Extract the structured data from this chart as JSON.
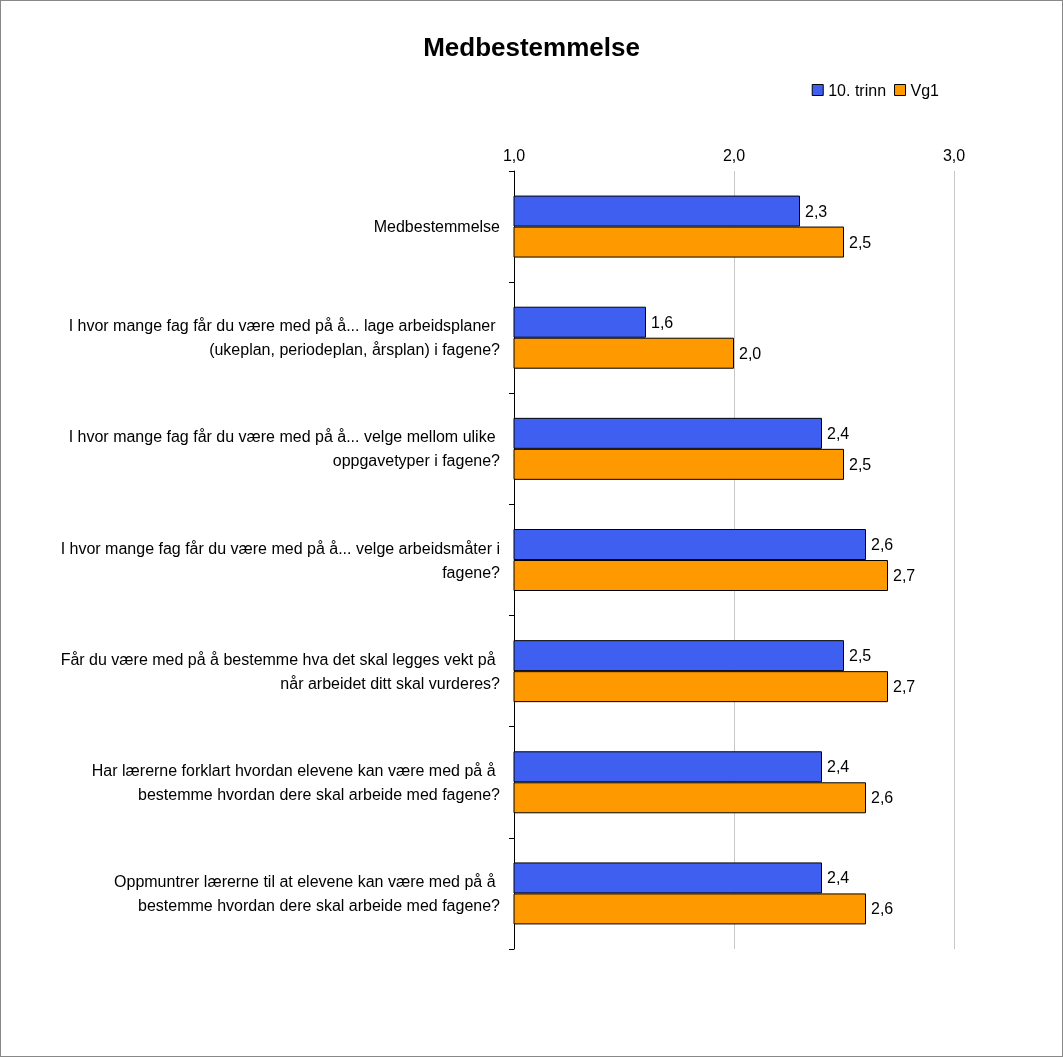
{
  "chart_data": {
    "type": "bar",
    "orientation": "horizontal",
    "title": "Medbestemmelse",
    "categories": [
      "Medbestemmelse",
      "I hvor mange fag får du være med på å... lage arbeidsplaner (ukeplan, periodeplan, årsplan) i fagene?",
      "I hvor mange fag får du være med på å... velge mellom ulike oppgavetyper i fagene?",
      "I hvor mange fag får du være med på å... velge arbeidsmåter i fagene?",
      "Får du være med på å bestemme hva det skal legges vekt på når arbeidet ditt skal vurderes?",
      "Har lærerne forklart hvordan elevene kan være med på å bestemme hvordan dere skal arbeide med fagene?",
      "Oppmuntrer lærerne til at elevene kan være med på å bestemme hvordan dere skal arbeide med fagene?"
    ],
    "series": [
      {
        "name": "10. trinn",
        "color": "#3f5ff0",
        "values": [
          2.3,
          1.6,
          2.4,
          2.6,
          2.5,
          2.4,
          2.4
        ],
        "value_labels": [
          "2,3",
          "1,6",
          "2,4",
          "2,6",
          "2,5",
          "2,4",
          "2,4"
        ]
      },
      {
        "name": "Vg1",
        "color": "#ff9900",
        "values": [
          2.5,
          2.0,
          2.5,
          2.7,
          2.7,
          2.6,
          2.6
        ],
        "value_labels": [
          "2,5",
          "2,0",
          "2,5",
          "2,7",
          "2,7",
          "2,6",
          "2,6"
        ]
      }
    ],
    "xlim": [
      1,
      3
    ],
    "xticks": [
      {
        "value": 1,
        "label": "1,0"
      },
      {
        "value": 2,
        "label": "2,0"
      },
      {
        "value": 3,
        "label": "3,0"
      }
    ],
    "grid": "x",
    "legend": "top right"
  }
}
